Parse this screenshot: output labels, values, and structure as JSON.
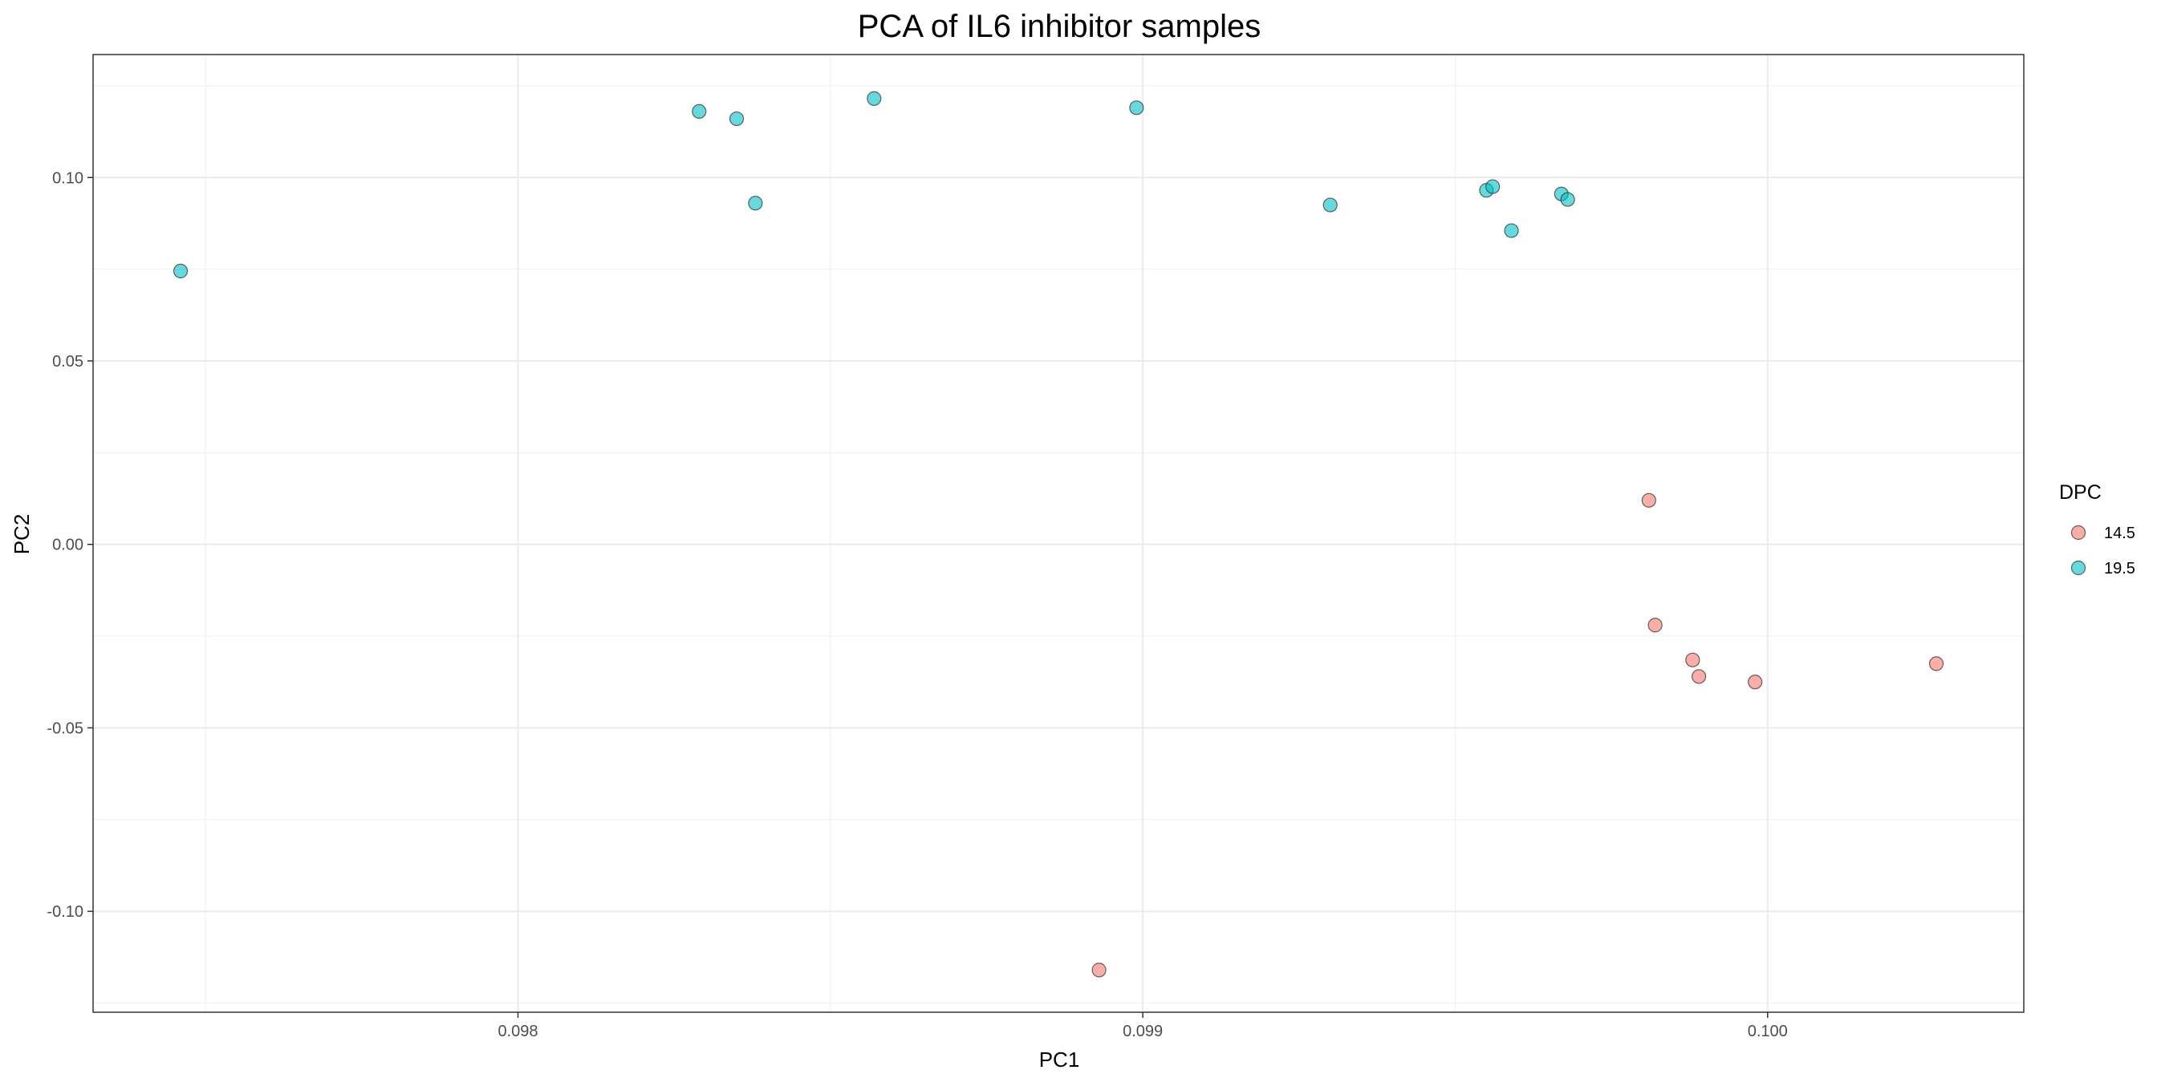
{
  "chart_data": {
    "type": "scatter",
    "title": "PCA of IL6 inhibitor samples",
    "xlabel": "PC1",
    "ylabel": "PC2",
    "xlim": [
      0.09732,
      0.10041
    ],
    "ylim": [
      -0.1275,
      0.1335
    ],
    "x_ticks": [
      0.098,
      0.099,
      0.1
    ],
    "x_tick_labels": [
      "0.098",
      "0.099",
      "0.100"
    ],
    "y_ticks": [
      -0.1,
      -0.05,
      0.0,
      0.05,
      0.1
    ],
    "y_tick_labels": [
      "-0.10",
      "-0.05",
      "0.00",
      "0.05",
      "0.10"
    ],
    "grid": true,
    "legend_title": "DPC",
    "legend_position": "right",
    "series": [
      {
        "name": "14.5",
        "color": "#F8766D",
        "points": [
          {
            "x": 0.09981,
            "y": 0.012
          },
          {
            "x": 0.09982,
            "y": -0.022
          },
          {
            "x": 0.09988,
            "y": -0.0315
          },
          {
            "x": 0.09989,
            "y": -0.036
          },
          {
            "x": 0.09998,
            "y": -0.0375
          },
          {
            "x": 0.10027,
            "y": -0.0325
          },
          {
            "x": 0.09893,
            "y": -0.116
          }
        ]
      },
      {
        "name": "19.5",
        "color": "#00BFC4",
        "points": [
          {
            "x": 0.09746,
            "y": 0.0745
          },
          {
            "x": 0.09829,
            "y": 0.118
          },
          {
            "x": 0.09835,
            "y": 0.116
          },
          {
            "x": 0.09838,
            "y": 0.093
          },
          {
            "x": 0.09857,
            "y": 0.1215
          },
          {
            "x": 0.09899,
            "y": 0.119
          },
          {
            "x": 0.0993,
            "y": 0.0925
          },
          {
            "x": 0.09955,
            "y": 0.0965
          },
          {
            "x": 0.09956,
            "y": 0.0975
          },
          {
            "x": 0.09959,
            "y": 0.0855
          },
          {
            "x": 0.09967,
            "y": 0.0955
          },
          {
            "x": 0.09968,
            "y": 0.094
          }
        ]
      }
    ]
  }
}
